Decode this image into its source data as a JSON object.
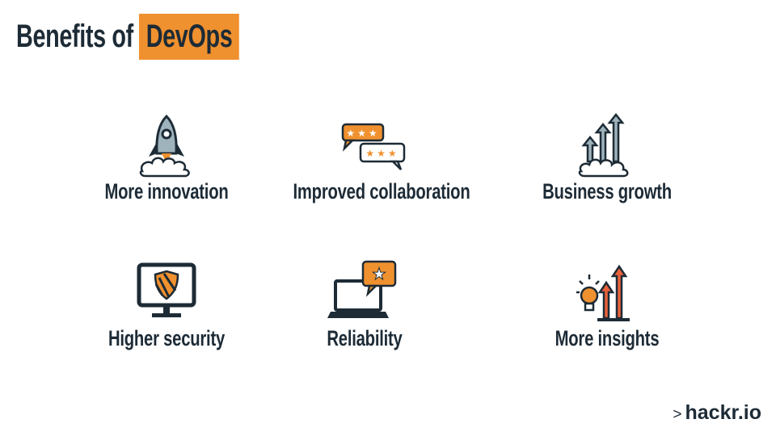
{
  "header": {
    "title_plain": "Benefits of",
    "title_highlight": "DevOps",
    "highlight_color": "#f0912f",
    "text_color": "#1d2b36"
  },
  "benefits": [
    {
      "label": "More innovation",
      "icon": "rocket-icon"
    },
    {
      "label": "Improved collaboration",
      "icon": "chat-ratings-icon"
    },
    {
      "label": "Business growth",
      "icon": "growth-arrows-icon"
    },
    {
      "label": "Higher security",
      "icon": "shield-monitor-icon"
    },
    {
      "label": "Reliability",
      "icon": "laptop-star-icon"
    },
    {
      "label": "More insights",
      "icon": "lightbulb-chart-icon"
    }
  ],
  "logo": {
    "caret": ">",
    "text": "hackr.io"
  }
}
